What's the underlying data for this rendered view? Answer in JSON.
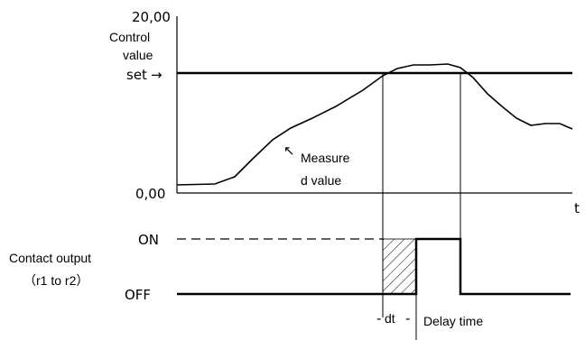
{
  "labels": {
    "y_max": "20,00",
    "y_min": "0,00",
    "y_title_line1": "Control",
    "y_title_line2": "value",
    "set_label": "set",
    "set_arrow": "→",
    "x_axis": "t",
    "measured_line1": "Measure",
    "measured_line2": "d value",
    "measured_arrow": "↖",
    "on": "ON",
    "off": "OFF",
    "contact_title": "Contact output",
    "contact_range": "（r1 to r2）",
    "dt": "dt",
    "delay": "Delay time"
  },
  "colors": {
    "axis": "#000000",
    "measured": "#000000",
    "accent_curve": "#7a3b2a"
  }
}
